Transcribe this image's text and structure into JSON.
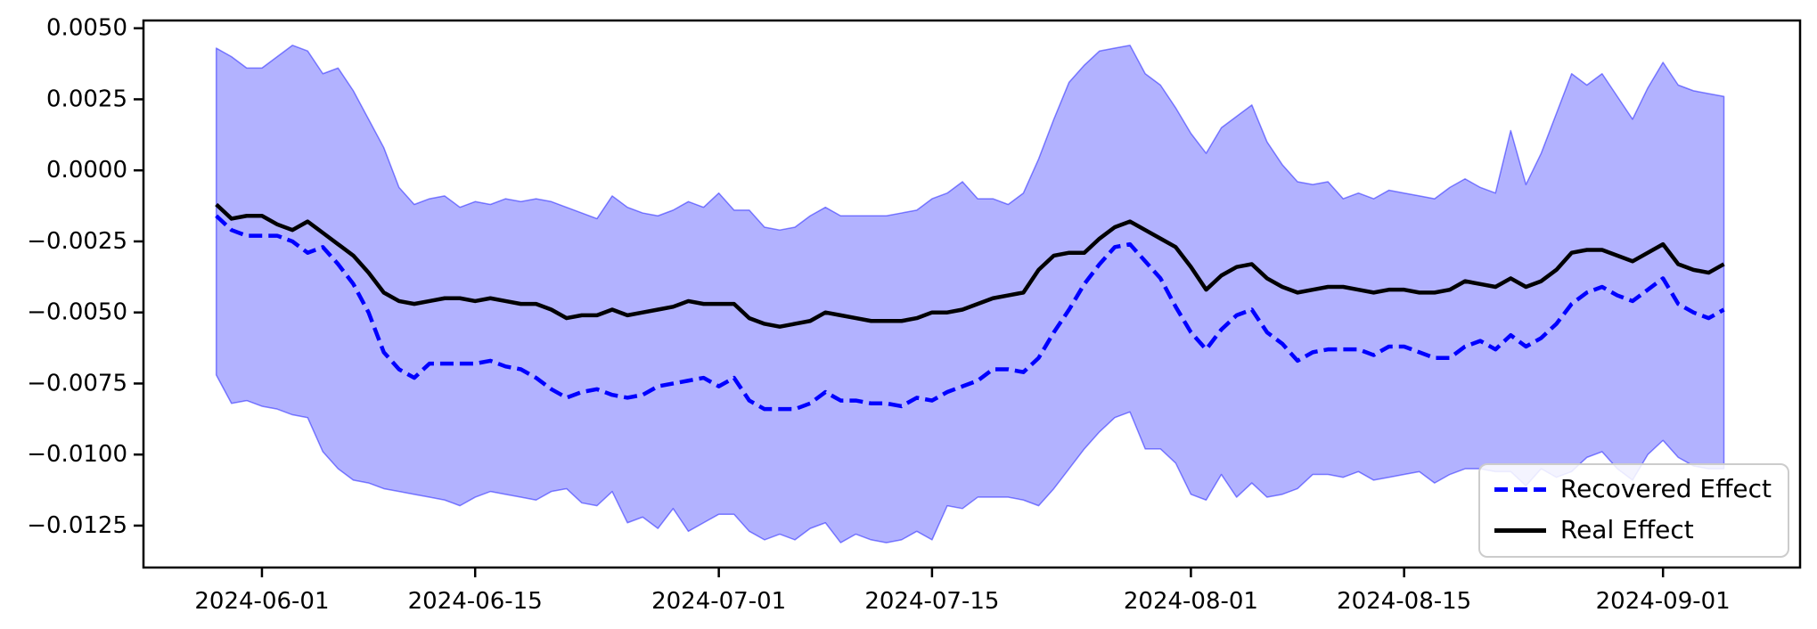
{
  "chart_data": {
    "type": "line",
    "title": "",
    "xlabel": "",
    "ylabel": "",
    "grid": false,
    "x_dates": [
      "2024-05-29",
      "2024-05-30",
      "2024-05-31",
      "2024-06-01",
      "2024-06-02",
      "2024-06-03",
      "2024-06-04",
      "2024-06-05",
      "2024-06-06",
      "2024-06-07",
      "2024-06-08",
      "2024-06-09",
      "2024-06-10",
      "2024-06-11",
      "2024-06-12",
      "2024-06-13",
      "2024-06-14",
      "2024-06-15",
      "2024-06-16",
      "2024-06-17",
      "2024-06-18",
      "2024-06-19",
      "2024-06-20",
      "2024-06-21",
      "2024-06-22",
      "2024-06-23",
      "2024-06-24",
      "2024-06-25",
      "2024-06-26",
      "2024-06-27",
      "2024-06-28",
      "2024-06-29",
      "2024-06-30",
      "2024-07-01",
      "2024-07-02",
      "2024-07-03",
      "2024-07-04",
      "2024-07-05",
      "2024-07-06",
      "2024-07-07",
      "2024-07-08",
      "2024-07-09",
      "2024-07-10",
      "2024-07-11",
      "2024-07-12",
      "2024-07-13",
      "2024-07-14",
      "2024-07-15",
      "2024-07-16",
      "2024-07-17",
      "2024-07-18",
      "2024-07-19",
      "2024-07-20",
      "2024-07-21",
      "2024-07-22",
      "2024-07-23",
      "2024-07-24",
      "2024-07-25",
      "2024-07-26",
      "2024-07-27",
      "2024-07-28",
      "2024-07-29",
      "2024-07-30",
      "2024-07-31",
      "2024-08-01",
      "2024-08-02",
      "2024-08-03",
      "2024-08-04",
      "2024-08-05",
      "2024-08-06",
      "2024-08-07",
      "2024-08-08",
      "2024-08-09",
      "2024-08-10",
      "2024-08-11",
      "2024-08-12",
      "2024-08-13",
      "2024-08-14",
      "2024-08-15",
      "2024-08-16",
      "2024-08-17",
      "2024-08-18",
      "2024-08-19",
      "2024-08-20",
      "2024-08-21",
      "2024-08-22",
      "2024-08-23",
      "2024-08-24",
      "2024-08-25",
      "2024-08-26",
      "2024-08-27",
      "2024-08-28",
      "2024-08-29",
      "2024-08-30",
      "2024-08-31",
      "2024-09-01",
      "2024-09-02",
      "2024-09-03",
      "2024-09-04",
      "2024-09-05"
    ],
    "series": [
      {
        "name": "Recovered Effect",
        "color": "#0000ff",
        "style": "dashed",
        "values": [
          -0.0016,
          -0.0021,
          -0.0023,
          -0.0023,
          -0.0023,
          -0.0025,
          -0.0029,
          -0.0027,
          -0.0033,
          -0.004,
          -0.005,
          -0.0064,
          -0.007,
          -0.0073,
          -0.0068,
          -0.0068,
          -0.0068,
          -0.0068,
          -0.0067,
          -0.0069,
          -0.007,
          -0.0073,
          -0.0077,
          -0.008,
          -0.0078,
          -0.0077,
          -0.0079,
          -0.008,
          -0.0079,
          -0.0076,
          -0.0075,
          -0.0074,
          -0.0073,
          -0.0076,
          -0.0073,
          -0.0081,
          -0.0084,
          -0.0084,
          -0.0084,
          -0.0082,
          -0.0078,
          -0.0081,
          -0.0081,
          -0.0082,
          -0.0082,
          -0.0083,
          -0.008,
          -0.0081,
          -0.0078,
          -0.0076,
          -0.0074,
          -0.007,
          -0.007,
          -0.0071,
          -0.0066,
          -0.0057,
          -0.0049,
          -0.004,
          -0.0033,
          -0.0027,
          -0.0026,
          -0.0032,
          -0.0038,
          -0.0048,
          -0.0057,
          -0.0063,
          -0.0056,
          -0.0051,
          -0.0049,
          -0.0057,
          -0.0061,
          -0.0067,
          -0.0064,
          -0.0063,
          -0.0063,
          -0.0063,
          -0.0065,
          -0.0062,
          -0.0062,
          -0.0064,
          -0.0066,
          -0.0066,
          -0.0062,
          -0.006,
          -0.0063,
          -0.0058,
          -0.0062,
          -0.0059,
          -0.0054,
          -0.0047,
          -0.0043,
          -0.0041,
          -0.0044,
          -0.0046,
          -0.0042,
          -0.0038,
          -0.0047,
          -0.005,
          -0.0052,
          -0.0049
        ]
      },
      {
        "name": "Real Effect",
        "color": "#000000",
        "style": "solid",
        "values": [
          -0.0012,
          -0.0017,
          -0.0016,
          -0.0016,
          -0.0019,
          -0.0021,
          -0.0018,
          -0.0022,
          -0.0026,
          -0.003,
          -0.0036,
          -0.0043,
          -0.0046,
          -0.0047,
          -0.0046,
          -0.0045,
          -0.0045,
          -0.0046,
          -0.0045,
          -0.0046,
          -0.0047,
          -0.0047,
          -0.0049,
          -0.0052,
          -0.0051,
          -0.0051,
          -0.0049,
          -0.0051,
          -0.005,
          -0.0049,
          -0.0048,
          -0.0046,
          -0.0047,
          -0.0047,
          -0.0047,
          -0.0052,
          -0.0054,
          -0.0055,
          -0.0054,
          -0.0053,
          -0.005,
          -0.0051,
          -0.0052,
          -0.0053,
          -0.0053,
          -0.0053,
          -0.0052,
          -0.005,
          -0.005,
          -0.0049,
          -0.0047,
          -0.0045,
          -0.0044,
          -0.0043,
          -0.0035,
          -0.003,
          -0.0029,
          -0.0029,
          -0.0024,
          -0.002,
          -0.0018,
          -0.0021,
          -0.0024,
          -0.0027,
          -0.0034,
          -0.0042,
          -0.0037,
          -0.0034,
          -0.0033,
          -0.0038,
          -0.0041,
          -0.0043,
          -0.0042,
          -0.0041,
          -0.0041,
          -0.0042,
          -0.0043,
          -0.0042,
          -0.0042,
          -0.0043,
          -0.0043,
          -0.0042,
          -0.0039,
          -0.004,
          -0.0041,
          -0.0038,
          -0.0041,
          -0.0039,
          -0.0035,
          -0.0029,
          -0.0028,
          -0.0028,
          -0.003,
          -0.0032,
          -0.0029,
          -0.0026,
          -0.0033,
          -0.0035,
          -0.0036,
          -0.0033
        ]
      }
    ],
    "band": {
      "name": "confidence-band",
      "color": "#0000ff",
      "fill_opacity": 0.3,
      "upper": [
        0.0043,
        0.004,
        0.0036,
        0.0036,
        0.004,
        0.0044,
        0.0042,
        0.0034,
        0.0036,
        0.0028,
        0.0018,
        0.0008,
        -0.0006,
        -0.0012,
        -0.001,
        -0.0009,
        -0.0013,
        -0.0011,
        -0.0012,
        -0.001,
        -0.0011,
        -0.001,
        -0.0011,
        -0.0013,
        -0.0015,
        -0.0017,
        -0.0009,
        -0.0013,
        -0.0015,
        -0.0016,
        -0.0014,
        -0.0011,
        -0.0013,
        -0.0008,
        -0.0014,
        -0.0014,
        -0.002,
        -0.0021,
        -0.002,
        -0.0016,
        -0.0013,
        -0.0016,
        -0.0016,
        -0.0016,
        -0.0016,
        -0.0015,
        -0.0014,
        -0.001,
        -0.0008,
        -0.0004,
        -0.001,
        -0.001,
        -0.0012,
        -0.0008,
        0.0004,
        0.0018,
        0.0031,
        0.0037,
        0.0042,
        0.0043,
        0.0044,
        0.0034,
        0.003,
        0.0022,
        0.0013,
        0.0006,
        0.0015,
        0.0019,
        0.0023,
        0.001,
        0.0002,
        -0.0004,
        -0.0005,
        -0.0004,
        -0.001,
        -0.0008,
        -0.001,
        -0.0007,
        -0.0008,
        -0.0009,
        -0.001,
        -0.0006,
        -0.0003,
        -0.0006,
        -0.0008,
        0.0014,
        -0.0005,
        0.0006,
        0.002,
        0.0034,
        0.003,
        0.0034,
        0.0026,
        0.0018,
        0.0029,
        0.0038,
        0.003,
        0.0028,
        0.0027,
        0.0026
      ],
      "lower": [
        -0.0072,
        -0.0082,
        -0.0081,
        -0.0083,
        -0.0084,
        -0.0086,
        -0.0087,
        -0.0099,
        -0.0105,
        -0.0109,
        -0.011,
        -0.0112,
        -0.0113,
        -0.0114,
        -0.0115,
        -0.0116,
        -0.0118,
        -0.0115,
        -0.0113,
        -0.0114,
        -0.0115,
        -0.0116,
        -0.0113,
        -0.0112,
        -0.0117,
        -0.0118,
        -0.0113,
        -0.0124,
        -0.0122,
        -0.0126,
        -0.0119,
        -0.0127,
        -0.0124,
        -0.0121,
        -0.0121,
        -0.0127,
        -0.013,
        -0.0128,
        -0.013,
        -0.0126,
        -0.0124,
        -0.0131,
        -0.0128,
        -0.013,
        -0.0131,
        -0.013,
        -0.0127,
        -0.013,
        -0.0118,
        -0.0119,
        -0.0115,
        -0.0115,
        -0.0115,
        -0.0116,
        -0.0118,
        -0.0112,
        -0.0105,
        -0.0098,
        -0.0092,
        -0.0087,
        -0.0085,
        -0.0098,
        -0.0098,
        -0.0103,
        -0.0114,
        -0.0116,
        -0.0107,
        -0.0115,
        -0.011,
        -0.0115,
        -0.0114,
        -0.0112,
        -0.0107,
        -0.0107,
        -0.0108,
        -0.0106,
        -0.0109,
        -0.0108,
        -0.0107,
        -0.0106,
        -0.011,
        -0.0107,
        -0.0105,
        -0.0105,
        -0.0106,
        -0.0106,
        -0.0111,
        -0.0105,
        -0.0108,
        -0.0106,
        -0.0101,
        -0.0099,
        -0.0105,
        -0.0109,
        -0.01,
        -0.0095,
        -0.0101,
        -0.0104,
        -0.0105,
        -0.0105
      ]
    },
    "axes": {
      "xticks": {
        "offsets": [
          3,
          17,
          33,
          47,
          64,
          78,
          95
        ],
        "labels": [
          "2024-06-01",
          "2024-06-15",
          "2024-07-01",
          "2024-07-15",
          "2024-08-01",
          "2024-08-15",
          "2024-09-01"
        ]
      },
      "yticks": {
        "values": [
          0.005,
          0.0025,
          0.0,
          -0.0025,
          -0.005,
          -0.0075,
          -0.01,
          -0.0125
        ],
        "labels": [
          "0.0050",
          "0.0025",
          "0.0000",
          "−0.0025",
          "−0.0050",
          "−0.0075",
          "−0.0100",
          "−0.0125"
        ]
      },
      "xlim_day_offsets": [
        -4.78,
        104.0
      ],
      "ylim": [
        -0.013975,
        0.005273
      ],
      "spine_color": "#000000"
    },
    "legend": {
      "position": "lower right",
      "entries": [
        {
          "label": "Recovered Effect",
          "color": "#0000ff",
          "style": "dashed"
        },
        {
          "label": "Real Effect",
          "color": "#000000",
          "style": "solid"
        }
      ]
    }
  }
}
